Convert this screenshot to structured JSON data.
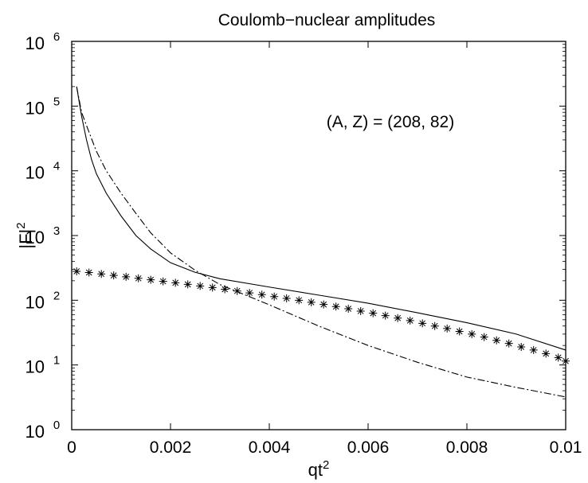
{
  "chart_data": {
    "type": "line",
    "title": "Coulomb−nuclear amplitudes",
    "xlabel": "qt",
    "xlabel_sup": "2",
    "ylabel": "|F|",
    "ylabel_sup": "2",
    "annotation": "(A, Z) = (208, 82)",
    "xlim": [
      0,
      0.01
    ],
    "ylim": [
      1,
      1000000
    ],
    "yscale": "log",
    "grid": false,
    "xticks": [
      {
        "value": 0,
        "label": "0"
      },
      {
        "value": 0.002,
        "label": "0.002"
      },
      {
        "value": 0.004,
        "label": "0.004"
      },
      {
        "value": 0.006,
        "label": "0.006"
      },
      {
        "value": 0.008,
        "label": "0.008"
      },
      {
        "value": 0.01,
        "label": "0.01"
      }
    ],
    "yticks": [
      {
        "value": 1,
        "base": "10",
        "exp": "0"
      },
      {
        "value": 10,
        "base": "10",
        "exp": "1"
      },
      {
        "value": 100,
        "base": "10",
        "exp": "2"
      },
      {
        "value": 1000,
        "base": "10",
        "exp": "3"
      },
      {
        "value": 10000,
        "base": "10",
        "exp": "4"
      },
      {
        "value": 100000,
        "base": "10",
        "exp": "5"
      },
      {
        "value": 1000000,
        "base": "10",
        "exp": "6"
      }
    ],
    "series": [
      {
        "style": "solid",
        "x": [
          0.0001,
          0.0002,
          0.0003,
          0.0004,
          0.0005,
          0.0007,
          0.001,
          0.0013,
          0.0016,
          0.002,
          0.0025,
          0.003,
          0.004,
          0.005,
          0.006,
          0.007,
          0.008,
          0.009,
          0.01
        ],
        "y": [
          200000,
          70000,
          30000,
          15000,
          9000,
          4500,
          2000,
          1000,
          620,
          380,
          270,
          215,
          160,
          120,
          90,
          64,
          45,
          30,
          17
        ]
      },
      {
        "style": "dashdot",
        "x": [
          0.0001,
          0.0002,
          0.0003,
          0.0005,
          0.0007,
          0.001,
          0.0013,
          0.0016,
          0.002,
          0.0025,
          0.003,
          0.004,
          0.005,
          0.006,
          0.007,
          0.008,
          0.009,
          0.01
        ],
        "y": [
          200000,
          80000,
          50000,
          20000,
          10000,
          4500,
          2200,
          1100,
          540,
          290,
          175,
          85,
          40,
          20,
          11,
          6.5,
          4.5,
          3.2
        ]
      },
      {
        "style": "markers",
        "marker": "*",
        "x": [
          0.0001,
          0.00035,
          0.0006,
          0.00085,
          0.0011,
          0.00135,
          0.0016,
          0.00185,
          0.0021,
          0.00235,
          0.0026,
          0.00285,
          0.0031,
          0.00335,
          0.0036,
          0.00385,
          0.0041,
          0.00435,
          0.0046,
          0.00485,
          0.0051,
          0.00535,
          0.0056,
          0.00585,
          0.0061,
          0.00635,
          0.0066,
          0.00685,
          0.0071,
          0.00735,
          0.0076,
          0.00785,
          0.0081,
          0.00835,
          0.0086,
          0.00885,
          0.0091,
          0.00935,
          0.0096,
          0.00985,
          0.01
        ],
        "y": [
          280,
          268,
          255,
          242,
          230,
          218,
          207,
          196,
          186,
          176,
          166,
          157,
          148,
          139,
          130,
          122,
          114,
          107,
          100,
          93,
          86,
          80,
          74,
          68,
          63,
          58,
          53,
          48.5,
          44,
          40,
          36.5,
          33,
          30,
          27,
          24,
          21.5,
          19,
          17,
          15,
          13,
          11.5
        ]
      }
    ]
  }
}
